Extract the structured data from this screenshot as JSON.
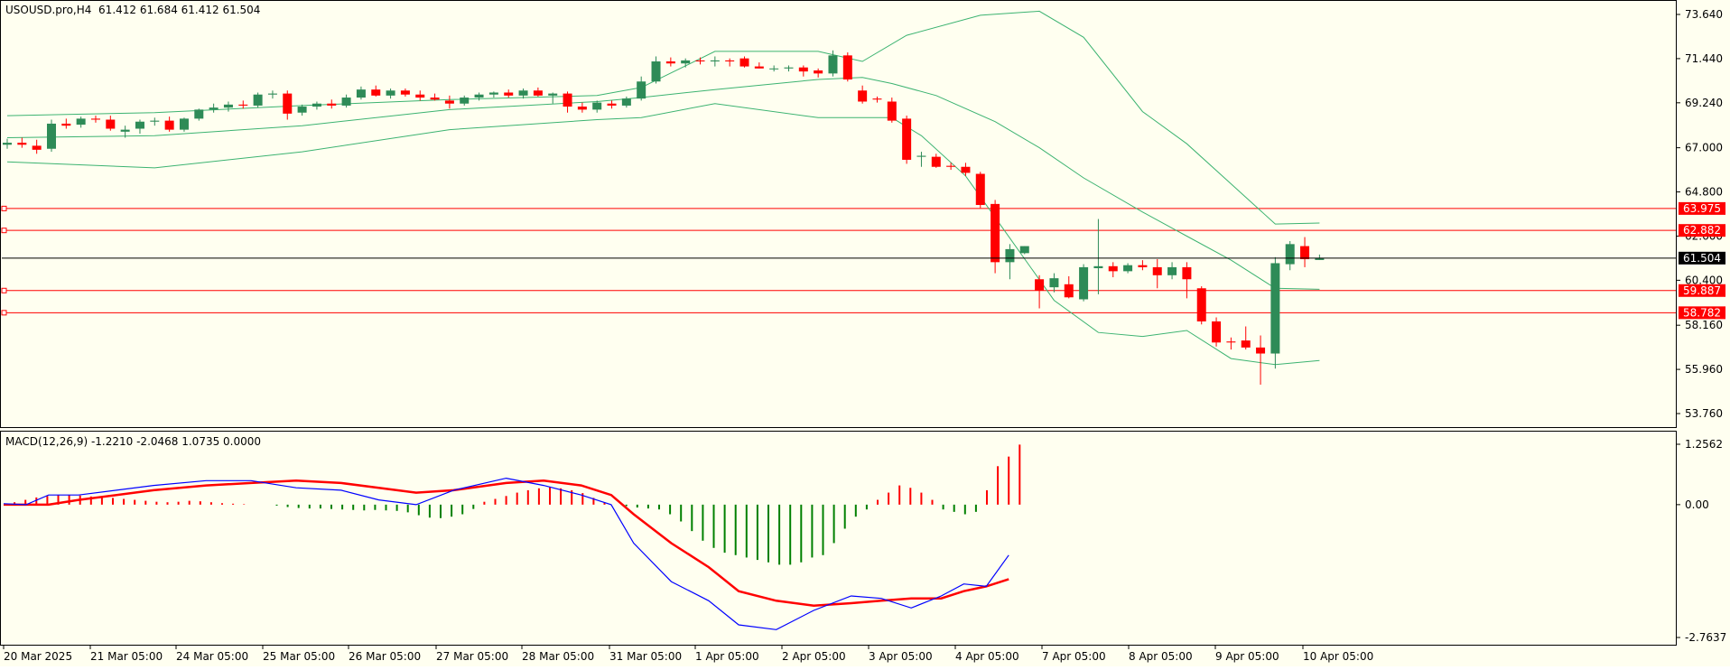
{
  "header": {
    "symbol": "USOUSD.pro,H4",
    "ohlc": "61.412 61.684 61.412 61.504"
  },
  "macd_header": {
    "label": "MACD(12,26,9)",
    "values": "-1.2210 -2.0468 1.0735 0.0000"
  },
  "colors": {
    "background": "#fffff0",
    "bull_candle": "#2e8b57",
    "bear_candle": "#ff0000",
    "bands": "#3cb371",
    "level_line": "#ff0000",
    "current_price": "#000000",
    "macd_signal": "#ff0000",
    "macd_main": "#0000ff",
    "hist_pos": "#ff0000",
    "hist_neg": "#008000"
  },
  "chart_data": [
    {
      "type": "candlestick",
      "ylim": [
        53.76,
        73.64
      ],
      "y_ticks": [
        "73.640",
        "71.440",
        "69.240",
        "67.000",
        "64.800",
        "62.600",
        "60.400",
        "58.160",
        "55.960",
        "53.760"
      ],
      "x_labels": [
        "20 Mar 2025",
        "21 Mar 05:00",
        "24 Mar 05:00",
        "25 Mar 05:00",
        "26 Mar 05:00",
        "27 Mar 05:00",
        "28 Mar 05:00",
        "31 Mar 05:00",
        "1 Apr 05:00",
        "2 Apr 05:00",
        "3 Apr 05:00",
        "4 Apr 05:00",
        "7 Apr 05:00",
        "8 Apr 05:00",
        "9 Apr 05:00",
        "10 Apr 05:00"
      ],
      "levels": [
        {
          "label": "63.975",
          "value": 63.975
        },
        {
          "label": "62.882",
          "value": 62.882
        },
        {
          "label": "59.887",
          "value": 59.887
        },
        {
          "label": "58.782",
          "value": 58.782
        }
      ],
      "current_price": {
        "label": "61.504",
        "value": 61.504
      },
      "candles": [
        {
          "o": 67.15,
          "h": 67.45,
          "l": 66.95,
          "c": 67.25
        },
        {
          "o": 67.25,
          "h": 67.5,
          "l": 67.0,
          "c": 67.15
        },
        {
          "o": 67.1,
          "h": 67.4,
          "l": 66.7,
          "c": 66.9
        },
        {
          "o": 66.95,
          "h": 68.4,
          "l": 66.8,
          "c": 68.2
        },
        {
          "o": 68.2,
          "h": 68.45,
          "l": 67.95,
          "c": 68.1
        },
        {
          "o": 68.15,
          "h": 68.55,
          "l": 68.0,
          "c": 68.45
        },
        {
          "o": 68.45,
          "h": 68.6,
          "l": 68.25,
          "c": 68.4
        },
        {
          "o": 68.4,
          "h": 68.6,
          "l": 67.85,
          "c": 67.95
        },
        {
          "o": 67.8,
          "h": 68.1,
          "l": 67.5,
          "c": 67.9
        },
        {
          "o": 67.95,
          "h": 68.4,
          "l": 67.7,
          "c": 68.3
        },
        {
          "o": 68.3,
          "h": 68.5,
          "l": 68.1,
          "c": 68.35
        },
        {
          "o": 68.35,
          "h": 68.55,
          "l": 67.8,
          "c": 67.9
        },
        {
          "o": 67.9,
          "h": 68.5,
          "l": 67.8,
          "c": 68.45
        },
        {
          "o": 68.45,
          "h": 68.95,
          "l": 68.35,
          "c": 68.9
        },
        {
          "o": 68.9,
          "h": 69.2,
          "l": 68.75,
          "c": 69.0
        },
        {
          "o": 69.0,
          "h": 69.3,
          "l": 68.8,
          "c": 69.15
        },
        {
          "o": 69.15,
          "h": 69.35,
          "l": 68.95,
          "c": 69.1
        },
        {
          "o": 69.1,
          "h": 69.75,
          "l": 69.0,
          "c": 69.65
        },
        {
          "o": 69.65,
          "h": 69.85,
          "l": 69.45,
          "c": 69.7
        },
        {
          "o": 69.7,
          "h": 69.85,
          "l": 68.4,
          "c": 68.7
        },
        {
          "o": 68.75,
          "h": 69.15,
          "l": 68.6,
          "c": 69.05
        },
        {
          "o": 69.05,
          "h": 69.3,
          "l": 68.9,
          "c": 69.2
        },
        {
          "o": 69.2,
          "h": 69.4,
          "l": 68.95,
          "c": 69.1
        },
        {
          "o": 69.1,
          "h": 69.65,
          "l": 69.0,
          "c": 69.5
        },
        {
          "o": 69.5,
          "h": 70.05,
          "l": 69.4,
          "c": 69.9
        },
        {
          "o": 69.9,
          "h": 70.1,
          "l": 69.55,
          "c": 69.6
        },
        {
          "o": 69.6,
          "h": 69.95,
          "l": 69.45,
          "c": 69.85
        },
        {
          "o": 69.85,
          "h": 69.95,
          "l": 69.55,
          "c": 69.65
        },
        {
          "o": 69.65,
          "h": 69.85,
          "l": 69.35,
          "c": 69.5
        },
        {
          "o": 69.5,
          "h": 69.7,
          "l": 69.35,
          "c": 69.4
        },
        {
          "o": 69.35,
          "h": 69.6,
          "l": 68.95,
          "c": 69.2
        },
        {
          "o": 69.2,
          "h": 69.6,
          "l": 69.1,
          "c": 69.5
        },
        {
          "o": 69.5,
          "h": 69.75,
          "l": 69.35,
          "c": 69.65
        },
        {
          "o": 69.65,
          "h": 69.8,
          "l": 69.5,
          "c": 69.75
        },
        {
          "o": 69.75,
          "h": 69.9,
          "l": 69.5,
          "c": 69.6
        },
        {
          "o": 69.6,
          "h": 69.95,
          "l": 69.45,
          "c": 69.85
        },
        {
          "o": 69.85,
          "h": 70.0,
          "l": 69.55,
          "c": 69.6
        },
        {
          "o": 69.6,
          "h": 69.75,
          "l": 69.2,
          "c": 69.7
        },
        {
          "o": 69.7,
          "h": 69.8,
          "l": 68.75,
          "c": 69.05
        },
        {
          "o": 69.05,
          "h": 69.25,
          "l": 68.75,
          "c": 68.9
        },
        {
          "o": 68.9,
          "h": 69.35,
          "l": 68.75,
          "c": 69.25
        },
        {
          "o": 69.2,
          "h": 69.35,
          "l": 68.95,
          "c": 69.1
        },
        {
          "o": 69.1,
          "h": 69.55,
          "l": 69.0,
          "c": 69.45
        },
        {
          "o": 69.45,
          "h": 70.55,
          "l": 69.35,
          "c": 70.3
        },
        {
          "o": 70.3,
          "h": 71.55,
          "l": 70.2,
          "c": 71.3
        },
        {
          "o": 71.3,
          "h": 71.5,
          "l": 71.05,
          "c": 71.2
        },
        {
          "o": 71.2,
          "h": 71.45,
          "l": 71.0,
          "c": 71.35
        },
        {
          "o": 71.35,
          "h": 71.5,
          "l": 71.15,
          "c": 71.3
        },
        {
          "o": 71.3,
          "h": 71.55,
          "l": 71.05,
          "c": 71.35
        },
        {
          "o": 71.35,
          "h": 71.45,
          "l": 71.05,
          "c": 71.3
        },
        {
          "o": 71.45,
          "h": 71.55,
          "l": 71.0,
          "c": 71.05
        },
        {
          "o": 71.05,
          "h": 71.25,
          "l": 70.95,
          "c": 70.95
        },
        {
          "o": 70.95,
          "h": 71.1,
          "l": 70.8,
          "c": 70.95
        },
        {
          "o": 70.95,
          "h": 71.1,
          "l": 70.8,
          "c": 71.0
        },
        {
          "o": 71.0,
          "h": 71.1,
          "l": 70.55,
          "c": 70.8
        },
        {
          "o": 70.85,
          "h": 70.95,
          "l": 70.5,
          "c": 70.7
        },
        {
          "o": 70.7,
          "h": 71.85,
          "l": 70.55,
          "c": 71.6
        },
        {
          "o": 71.6,
          "h": 71.75,
          "l": 70.3,
          "c": 70.4
        },
        {
          "o": 69.85,
          "h": 70.1,
          "l": 69.2,
          "c": 69.3
        },
        {
          "o": 69.45,
          "h": 69.55,
          "l": 69.25,
          "c": 69.4
        },
        {
          "o": 69.3,
          "h": 69.5,
          "l": 68.25,
          "c": 68.35
        },
        {
          "o": 68.45,
          "h": 68.6,
          "l": 66.2,
          "c": 66.4
        },
        {
          "o": 66.55,
          "h": 66.8,
          "l": 66.05,
          "c": 66.6
        },
        {
          "o": 66.55,
          "h": 66.7,
          "l": 66.0,
          "c": 66.05
        },
        {
          "o": 66.1,
          "h": 66.25,
          "l": 65.9,
          "c": 66.05
        },
        {
          "o": 66.05,
          "h": 66.25,
          "l": 65.6,
          "c": 65.75
        },
        {
          "o": 65.7,
          "h": 65.8,
          "l": 64.0,
          "c": 64.15
        },
        {
          "o": 64.2,
          "h": 64.4,
          "l": 60.75,
          "c": 61.3
        },
        {
          "o": 61.3,
          "h": 62.2,
          "l": 60.45,
          "c": 61.95
        },
        {
          "o": 61.75,
          "h": 62.1,
          "l": 61.7,
          "c": 62.1
        },
        {
          "o": 60.45,
          "h": 60.65,
          "l": 59.0,
          "c": 59.9
        },
        {
          "o": 60.05,
          "h": 60.75,
          "l": 59.8,
          "c": 60.5
        },
        {
          "o": 60.2,
          "h": 60.6,
          "l": 59.5,
          "c": 59.55
        },
        {
          "o": 59.45,
          "h": 61.2,
          "l": 59.35,
          "c": 61.05
        },
        {
          "o": 61.0,
          "h": 63.45,
          "l": 59.7,
          "c": 61.1
        },
        {
          "o": 61.1,
          "h": 61.3,
          "l": 60.55,
          "c": 60.85
        },
        {
          "o": 60.85,
          "h": 61.25,
          "l": 60.75,
          "c": 61.15
        },
        {
          "o": 61.15,
          "h": 61.4,
          "l": 60.9,
          "c": 61.05
        },
        {
          "o": 61.05,
          "h": 61.45,
          "l": 60.0,
          "c": 60.65
        },
        {
          "o": 60.65,
          "h": 61.3,
          "l": 60.45,
          "c": 61.05
        },
        {
          "o": 61.05,
          "h": 61.3,
          "l": 59.5,
          "c": 60.45
        },
        {
          "o": 60.0,
          "h": 60.1,
          "l": 58.2,
          "c": 58.35
        },
        {
          "o": 58.35,
          "h": 58.55,
          "l": 57.1,
          "c": 57.3
        },
        {
          "o": 57.35,
          "h": 57.55,
          "l": 56.95,
          "c": 57.3
        },
        {
          "o": 57.4,
          "h": 58.1,
          "l": 56.95,
          "c": 57.05
        },
        {
          "o": 57.05,
          "h": 57.65,
          "l": 55.2,
          "c": 56.75
        },
        {
          "o": 56.75,
          "h": 61.55,
          "l": 56.0,
          "c": 61.25
        },
        {
          "o": 61.2,
          "h": 62.35,
          "l": 60.9,
          "c": 62.2
        },
        {
          "o": 62.1,
          "h": 62.55,
          "l": 61.05,
          "c": 61.45
        },
        {
          "o": 61.41,
          "h": 61.68,
          "l": 61.41,
          "c": 61.5
        }
      ],
      "bands_upper": [
        [
          0,
          68.6
        ],
        [
          10,
          68.75
        ],
        [
          20,
          69.1
        ],
        [
          30,
          69.4
        ],
        [
          40,
          69.6
        ],
        [
          43,
          70.0
        ],
        [
          48,
          71.8
        ],
        [
          55,
          71.8
        ],
        [
          58,
          71.3
        ],
        [
          61,
          72.6
        ],
        [
          66,
          73.6
        ],
        [
          70,
          73.8
        ],
        [
          73,
          72.5
        ],
        [
          77,
          68.8
        ],
        [
          80,
          67.2
        ],
        [
          83,
          65.2
        ],
        [
          86,
          63.2
        ],
        [
          89,
          63.25
        ]
      ],
      "bands_middle": [
        [
          0,
          67.5
        ],
        [
          10,
          67.6
        ],
        [
          20,
          68.1
        ],
        [
          30,
          68.9
        ],
        [
          40,
          69.3
        ],
        [
          43,
          69.5
        ],
        [
          48,
          69.9
        ],
        [
          55,
          70.4
        ],
        [
          58,
          70.5
        ],
        [
          60,
          70.2
        ],
        [
          63,
          69.6
        ],
        [
          67,
          68.3
        ],
        [
          70,
          67.0
        ],
        [
          73,
          65.5
        ],
        [
          77,
          63.8
        ],
        [
          80,
          62.6
        ],
        [
          83,
          61.4
        ],
        [
          86,
          60.0
        ],
        [
          89,
          59.95
        ]
      ],
      "bands_lower": [
        [
          0,
          66.3
        ],
        [
          10,
          66.0
        ],
        [
          20,
          66.8
        ],
        [
          30,
          67.9
        ],
        [
          40,
          68.4
        ],
        [
          43,
          68.5
        ],
        [
          48,
          69.2
        ],
        [
          55,
          68.5
        ],
        [
          60,
          68.5
        ],
        [
          62,
          67.6
        ],
        [
          65,
          65.6
        ],
        [
          68,
          62.5
        ],
        [
          71,
          59.4
        ],
        [
          74,
          57.8
        ],
        [
          77,
          57.6
        ],
        [
          80,
          57.9
        ],
        [
          83,
          56.5
        ],
        [
          86,
          56.2
        ],
        [
          89,
          56.4
        ]
      ]
    },
    {
      "type": "macd",
      "ylim": [
        -2.7637,
        1.2562
      ],
      "y_ticks": [
        "1.2562",
        "0.00",
        "-2.7637"
      ],
      "histogram": [
        0.0,
        0.05,
        0.1,
        0.15,
        0.18,
        0.2,
        0.2,
        0.19,
        0.17,
        0.16,
        0.14,
        0.12,
        0.1,
        0.08,
        0.06,
        0.05,
        0.06,
        0.08,
        0.07,
        0.05,
        0.03,
        0.02,
        0.01,
        0.0,
        0.0,
        -0.02,
        -0.05,
        -0.07,
        -0.08,
        -0.08,
        -0.09,
        -0.1,
        -0.11,
        -0.12,
        -0.11,
        -0.12,
        -0.13,
        -0.16,
        -0.22,
        -0.27,
        -0.28,
        -0.25,
        -0.2,
        -0.09,
        0.06,
        0.12,
        0.18,
        0.25,
        0.3,
        0.34,
        0.36,
        0.34,
        0.3,
        0.24,
        0.14,
        0.04,
        0.0,
        -0.03,
        -0.06,
        -0.08,
        -0.1,
        -0.2,
        -0.35,
        -0.55,
        -0.75,
        -0.9,
        -1.0,
        -1.05,
        -1.1,
        -1.15,
        -1.2,
        -1.25,
        -1.25,
        -1.2,
        -1.1,
        -1.05,
        -0.8,
        -0.5,
        -0.25,
        -0.1,
        0.1,
        0.25,
        0.4,
        0.35,
        0.25,
        0.1,
        -0.1,
        -0.15,
        -0.2,
        -0.15,
        0.3,
        0.8,
        1.0,
        1.25
      ],
      "macd_main": [
        [
          0,
          0.02
        ],
        [
          3,
          0.0
        ],
        [
          6,
          0.2
        ],
        [
          10,
          0.2
        ],
        [
          20,
          0.4
        ],
        [
          27,
          0.5
        ],
        [
          33,
          0.5
        ],
        [
          39,
          0.35
        ],
        [
          45,
          0.3
        ],
        [
          50,
          0.1
        ],
        [
          55,
          0.0
        ],
        [
          60,
          0.3
        ],
        [
          67,
          0.55
        ],
        [
          72,
          0.4
        ],
        [
          77,
          0.2
        ],
        [
          81,
          0.0
        ],
        [
          84,
          -0.8
        ],
        [
          89,
          -1.6
        ],
        [
          94,
          -2.0
        ],
        [
          98,
          -2.5
        ],
        [
          103,
          -2.6
        ],
        [
          108,
          -2.2
        ],
        [
          113,
          -1.9
        ],
        [
          117,
          -1.95
        ],
        [
          121,
          -2.15
        ],
        [
          125,
          -1.9
        ],
        [
          128,
          -1.65
        ],
        [
          131,
          -1.7
        ],
        [
          134,
          -1.05
        ]
      ],
      "signal": [
        [
          0,
          0.0
        ],
        [
          3,
          0.0
        ],
        [
          6,
          0.0
        ],
        [
          10,
          0.1
        ],
        [
          20,
          0.3
        ],
        [
          27,
          0.4
        ],
        [
          33,
          0.45
        ],
        [
          39,
          0.5
        ],
        [
          45,
          0.45
        ],
        [
          50,
          0.35
        ],
        [
          55,
          0.25
        ],
        [
          60,
          0.3
        ],
        [
          67,
          0.45
        ],
        [
          72,
          0.5
        ],
        [
          77,
          0.4
        ],
        [
          81,
          0.2
        ],
        [
          84,
          -0.2
        ],
        [
          89,
          -0.8
        ],
        [
          94,
          -1.3
        ],
        [
          98,
          -1.8
        ],
        [
          103,
          -2.0
        ],
        [
          108,
          -2.1
        ],
        [
          113,
          -2.05
        ],
        [
          117,
          -2.0
        ],
        [
          121,
          -1.95
        ],
        [
          125,
          -1.95
        ],
        [
          128,
          -1.8
        ],
        [
          131,
          -1.7
        ],
        [
          134,
          -1.55
        ]
      ]
    }
  ]
}
